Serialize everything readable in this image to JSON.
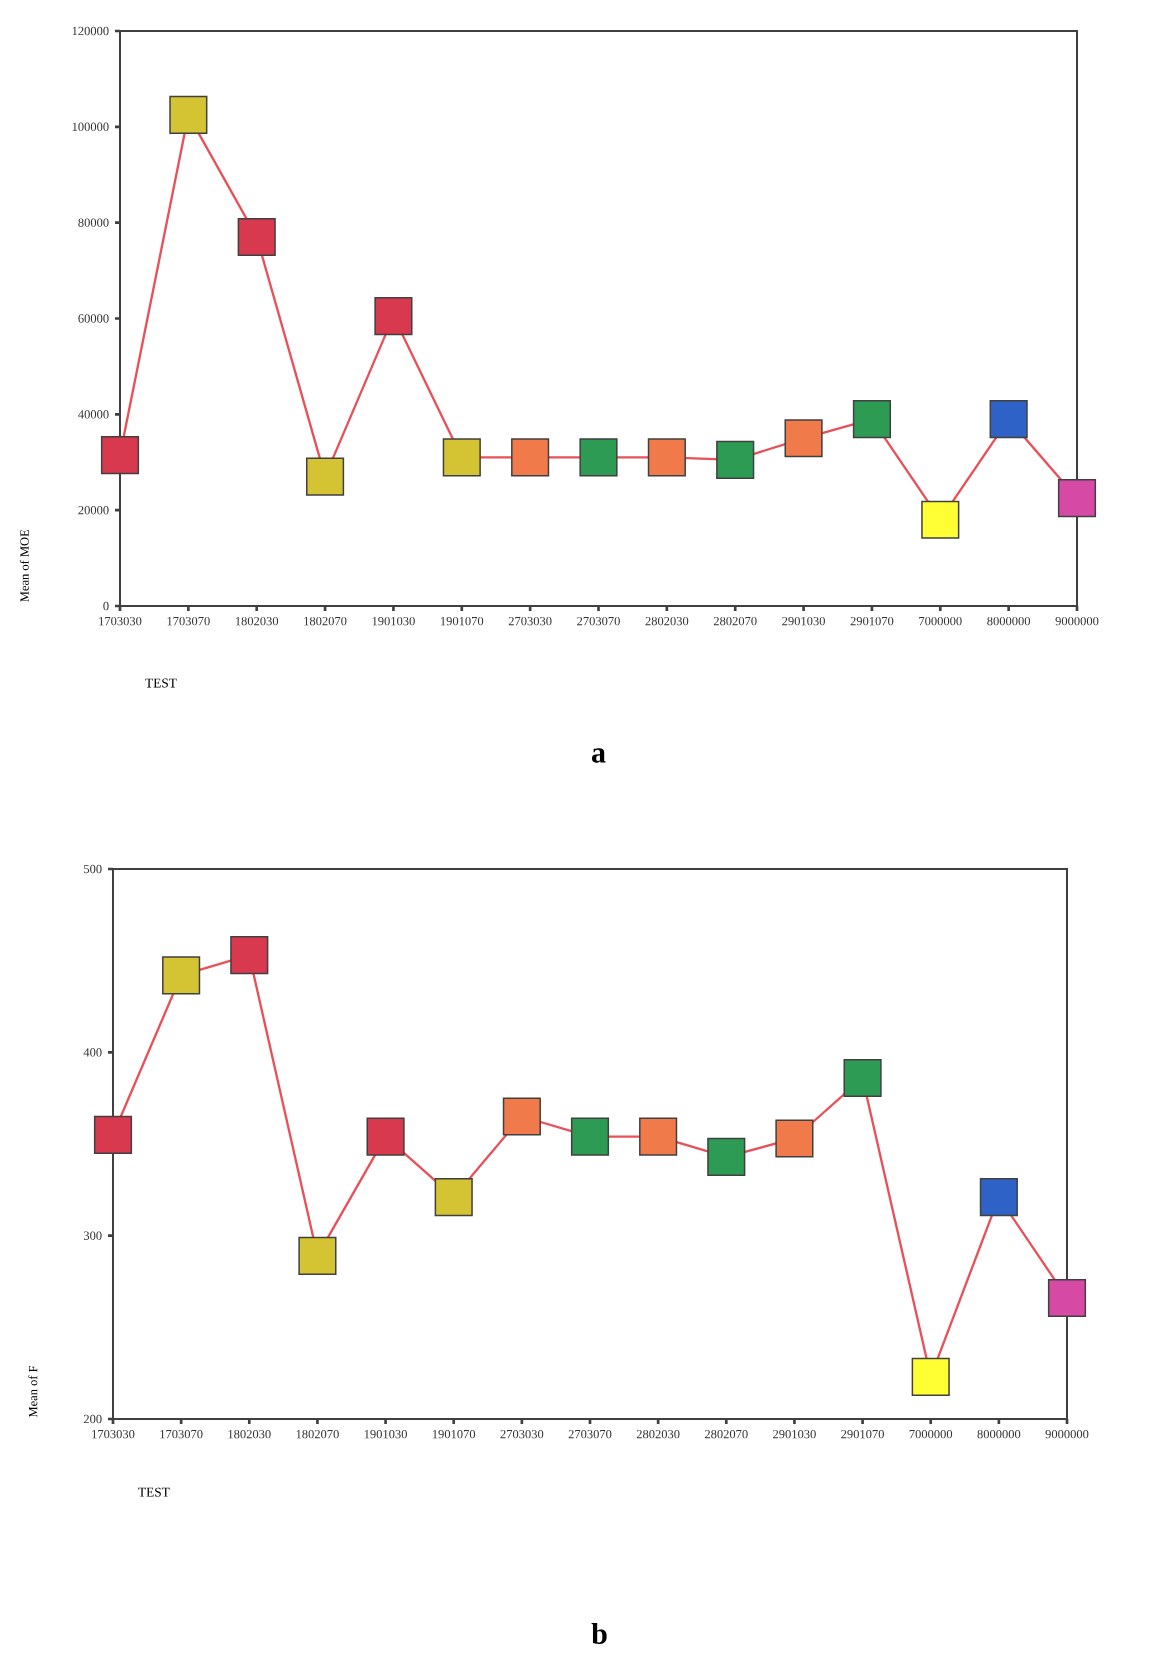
{
  "chart_data": [
    {
      "type": "line",
      "categories": [
        "1703030",
        "1703070",
        "1802030",
        "1802070",
        "1901030",
        "1901070",
        "2703030",
        "2703070",
        "2802030",
        "2802070",
        "2901030",
        "2901070",
        "7000000",
        "8000000",
        "9000000"
      ],
      "values": [
        31500,
        102500,
        77000,
        27000,
        60500,
        31000,
        31000,
        31000,
        31000,
        30500,
        35000,
        39000,
        18000,
        39000,
        22500
      ],
      "color": "#e8505a",
      "marker": "square",
      "colors": [
        "#d9394f",
        "#d4c332",
        "#d9394f",
        "#d4c332",
        "#d9394f",
        "#d4c332",
        "#f07a4a",
        "#2e9b55",
        "#f07a4a",
        "#2e9b55",
        "#f07a4a",
        "#2e9b55",
        "#ffff33",
        "#2f62c7",
        "#d64aa6"
      ],
      "ylim": [
        0,
        120000
      ],
      "yticks": [
        0,
        20000,
        40000,
        60000,
        80000,
        100000,
        120000
      ],
      "ylabel": "Mean of MOE",
      "xlabel": "TEST",
      "annotations": [
        "a"
      ]
    },
    {
      "type": "line",
      "categories": [
        "1703030",
        "1703070",
        "1802030",
        "1802070",
        "1901030",
        "1901070",
        "2703030",
        "2703070",
        "2802030",
        "2802070",
        "2901030",
        "2901070",
        "7000000",
        "8000000",
        "9000000"
      ],
      "values": [
        355,
        442,
        453,
        289,
        354,
        321,
        365,
        354,
        354,
        343,
        353,
        386,
        223,
        321,
        266
      ],
      "color": "#e8505a",
      "marker": "square",
      "colors": [
        "#d9394f",
        "#d4c332",
        "#d9394f",
        "#d4c332",
        "#d9394f",
        "#d4c332",
        "#f07a4a",
        "#2e9b55",
        "#f07a4a",
        "#2e9b55",
        "#f07a4a",
        "#2e9b55",
        "#ffff33",
        "#2f62c7",
        "#d64aa6"
      ],
      "ylim": [
        200,
        500
      ],
      "yticks": [
        200,
        300,
        400,
        500
      ],
      "ylabel": "Mean of F",
      "xlabel": "TEST",
      "annotations": [
        "b"
      ]
    }
  ]
}
